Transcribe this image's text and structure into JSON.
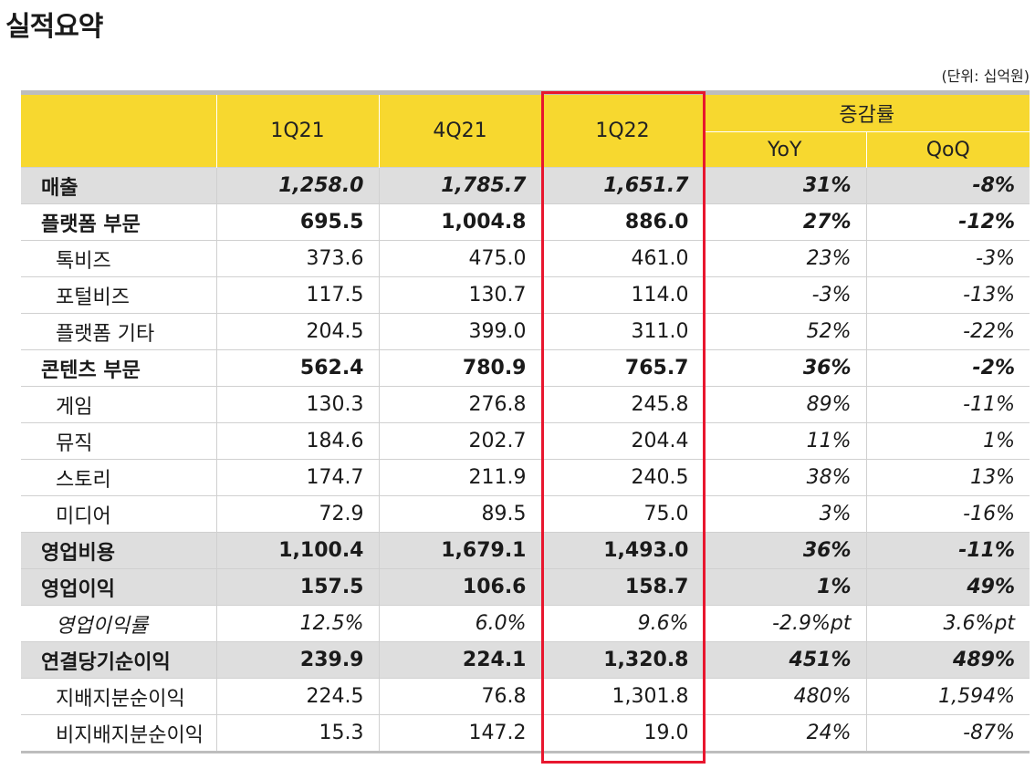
{
  "title": "실적요약",
  "unit": "(단위: 십억원)",
  "header": {
    "periods": [
      "1Q21",
      "4Q21",
      "1Q22"
    ],
    "change_group": "증감률",
    "yoy": "YoY",
    "qoq": "QoQ"
  },
  "highlight_color": "#e8162e",
  "header_color": "#f7d82f",
  "rows": [
    {
      "label": "매출",
      "v": [
        "1,258.0",
        "1,785.7",
        "1,651.7"
      ],
      "yoy": "31%",
      "qoq": "-8%"
    },
    {
      "label": "플랫폼 부문",
      "v": [
        "695.5",
        "1,004.8",
        "886.0"
      ],
      "yoy": "27%",
      "qoq": "-12%"
    },
    {
      "label": "톡비즈",
      "v": [
        "373.6",
        "475.0",
        "461.0"
      ],
      "yoy": "23%",
      "qoq": "-3%"
    },
    {
      "label": "포털비즈",
      "v": [
        "117.5",
        "130.7",
        "114.0"
      ],
      "yoy": "-3%",
      "qoq": "-13%"
    },
    {
      "label": "플랫폼 기타",
      "v": [
        "204.5",
        "399.0",
        "311.0"
      ],
      "yoy": "52%",
      "qoq": "-22%"
    },
    {
      "label": "콘텐츠 부문",
      "v": [
        "562.4",
        "780.9",
        "765.7"
      ],
      "yoy": "36%",
      "qoq": "-2%"
    },
    {
      "label": "게임",
      "v": [
        "130.3",
        "276.8",
        "245.8"
      ],
      "yoy": "89%",
      "qoq": "-11%"
    },
    {
      "label": "뮤직",
      "v": [
        "184.6",
        "202.7",
        "204.4"
      ],
      "yoy": "11%",
      "qoq": "1%"
    },
    {
      "label": "스토리",
      "v": [
        "174.7",
        "211.9",
        "240.5"
      ],
      "yoy": "38%",
      "qoq": "13%"
    },
    {
      "label": "미디어",
      "v": [
        "72.9",
        "89.5",
        "75.0"
      ],
      "yoy": "3%",
      "qoq": "-16%"
    },
    {
      "label": "영업비용",
      "v": [
        "1,100.4",
        "1,679.1",
        "1,493.0"
      ],
      "yoy": "36%",
      "qoq": "-11%"
    },
    {
      "label": "영업이익",
      "v": [
        "157.5",
        "106.6",
        "158.7"
      ],
      "yoy": "1%",
      "qoq": "49%"
    },
    {
      "label": "영업이익률",
      "v": [
        "12.5%",
        "6.0%",
        "9.6%"
      ],
      "yoy": "-2.9%pt",
      "qoq": "3.6%pt"
    },
    {
      "label": "연결당기순이익",
      "v": [
        "239.9",
        "224.1",
        "1,320.8"
      ],
      "yoy": "451%",
      "qoq": "489%"
    },
    {
      "label": "지배지분순이익",
      "v": [
        "224.5",
        "76.8",
        "1,301.8"
      ],
      "yoy": "480%",
      "qoq": "1,594%"
    },
    {
      "label": "비지배지분순이익",
      "v": [
        "15.3",
        "147.2",
        "19.0"
      ],
      "yoy": "24%",
      "qoq": "-87%"
    }
  ]
}
